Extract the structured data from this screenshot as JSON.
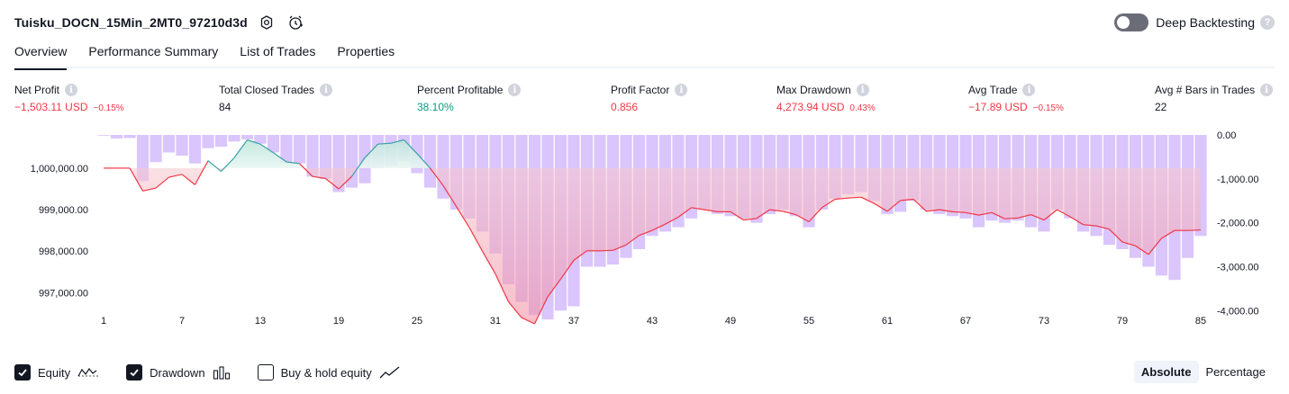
{
  "header": {
    "title": "Tuisku_DOCN_15Min_2MT0_97210d3d",
    "deep_backtesting_label": "Deep Backtesting",
    "deep_backtesting_on": false
  },
  "tabs": [
    {
      "label": "Overview",
      "active": true
    },
    {
      "label": "Performance Summary",
      "active": false
    },
    {
      "label": "List of Trades",
      "active": false
    },
    {
      "label": "Properties",
      "active": false
    }
  ],
  "metrics": [
    {
      "label": "Net Profit",
      "value": "−1,503.11 USD",
      "sub": "−0.15%",
      "tone": "neg"
    },
    {
      "label": "Total Closed Trades",
      "value": "84",
      "sub": "",
      "tone": "neu"
    },
    {
      "label": "Percent Profitable",
      "value": "38.10%",
      "sub": "",
      "tone": "pos"
    },
    {
      "label": "Profit Factor",
      "value": "0.856",
      "sub": "",
      "tone": "neg"
    },
    {
      "label": "Max Drawdown",
      "value": "4,273.94 USD",
      "sub": "0.43%",
      "tone": "neg"
    },
    {
      "label": "Avg Trade",
      "value": "−17.89 USD",
      "sub": "−0.15%",
      "tone": "neg"
    },
    {
      "label": "Avg # Bars in Trades",
      "value": "22",
      "sub": "",
      "tone": "neu"
    }
  ],
  "chart_data": {
    "type": "line",
    "x": [
      1,
      2,
      3,
      4,
      5,
      6,
      7,
      8,
      9,
      10,
      11,
      12,
      13,
      14,
      15,
      16,
      17,
      18,
      19,
      20,
      21,
      22,
      23,
      24,
      25,
      26,
      27,
      28,
      29,
      30,
      31,
      32,
      33,
      34,
      35,
      36,
      37,
      38,
      39,
      40,
      41,
      42,
      43,
      44,
      45,
      46,
      47,
      48,
      49,
      50,
      51,
      52,
      53,
      54,
      55,
      56,
      57,
      58,
      59,
      60,
      61,
      62,
      63,
      64,
      65,
      66,
      67,
      68,
      69,
      70,
      71,
      72,
      73,
      74,
      75,
      76,
      77,
      78,
      79,
      80,
      81,
      82,
      83,
      84,
      85
    ],
    "x_ticks": [
      "1",
      "7",
      "13",
      "19",
      "25",
      "31",
      "37",
      "43",
      "49",
      "55",
      "61",
      "67",
      "73",
      "79",
      "85"
    ],
    "series": [
      {
        "name": "Equity",
        "axis": "left",
        "values": [
          1000000,
          1000000,
          1000000,
          999450,
          999520,
          999780,
          999850,
          999600,
          1000180,
          999920,
          1000250,
          1000680,
          1000580,
          1000370,
          1000150,
          1000110,
          999800,
          999750,
          999500,
          999800,
          1000250,
          1000580,
          1000600,
          1000680,
          1000350,
          1000000,
          999580,
          999080,
          998570,
          998000,
          997450,
          996780,
          996400,
          996250,
          996900,
          997330,
          997780,
          998010,
          998010,
          998020,
          998150,
          998380,
          998500,
          998650,
          998820,
          999050,
          999000,
          998950,
          998950,
          998750,
          998790,
          999000,
          998960,
          998880,
          998710,
          999050,
          999250,
          999280,
          999300,
          999150,
          998960,
          999220,
          999250,
          998960,
          999000,
          998950,
          998930,
          998870,
          998930,
          998780,
          998800,
          998880,
          998750,
          999000,
          998830,
          998640,
          998610,
          998530,
          998220,
          998130,
          997920,
          998310,
          998500,
          998500,
          998510
        ]
      },
      {
        "name": "Drawdown",
        "axis": "right",
        "values": [
          -10,
          -80,
          -70,
          -1050,
          -620,
          -400,
          -470,
          -650,
          -300,
          -270,
          -150,
          -100,
          -200,
          -400,
          -650,
          -650,
          -950,
          -1000,
          -1300,
          -1200,
          -1100,
          -750,
          -700,
          -600,
          -870,
          -1200,
          -1450,
          -1700,
          -1900,
          -2200,
          -2700,
          -3400,
          -3800,
          -4100,
          -4200,
          -4000,
          -3900,
          -3000,
          -3000,
          -2950,
          -2800,
          -2600,
          -2300,
          -2200,
          -2100,
          -1900,
          -1700,
          -1800,
          -1850,
          -1900,
          -2000,
          -1800,
          -1700,
          -1850,
          -2100,
          -1700,
          -1450,
          -1350,
          -1300,
          -1500,
          -1800,
          -1750,
          -1500,
          -1700,
          -1800,
          -1850,
          -1900,
          -2100,
          -1950,
          -2000,
          -1950,
          -2100,
          -2200,
          -1700,
          -1900,
          -2200,
          -2300,
          -2500,
          -2600,
          -2800,
          -3000,
          -3200,
          -3300,
          -2800,
          -2300
        ]
      }
    ],
    "y_left": {
      "range": [
        996250,
        1000800
      ],
      "ticks": [
        "1,000,000.00",
        "999,000.00",
        "998,000.00",
        "997,000.00"
      ],
      "tick_values": [
        1000000,
        999000,
        998000,
        997000
      ]
    },
    "y_right": {
      "range": [
        -4300,
        0
      ],
      "ticks": [
        "0.00",
        "-1,000.00",
        "-2,000.00",
        "-3,000.00",
        "-4,000.00"
      ],
      "tick_values": [
        0,
        -1000,
        -2000,
        -3000,
        -4000
      ]
    },
    "baseline": 1000000,
    "colors": {
      "equity_up": "#089981",
      "equity_down": "#f23645",
      "drawdown_bar": "#d4bcfc",
      "grid_text": "#131722"
    }
  },
  "legend": [
    {
      "label": "Equity",
      "checked": true,
      "icon": "equity-wave-icon"
    },
    {
      "label": "Drawdown",
      "checked": true,
      "icon": "drawdown-bars-icon"
    },
    {
      "label": "Buy & hold equity",
      "checked": false,
      "icon": "buy-hold-line-icon"
    }
  ],
  "scale_modes": [
    {
      "label": "Absolute",
      "active": true
    },
    {
      "label": "Percentage",
      "active": false
    }
  ]
}
